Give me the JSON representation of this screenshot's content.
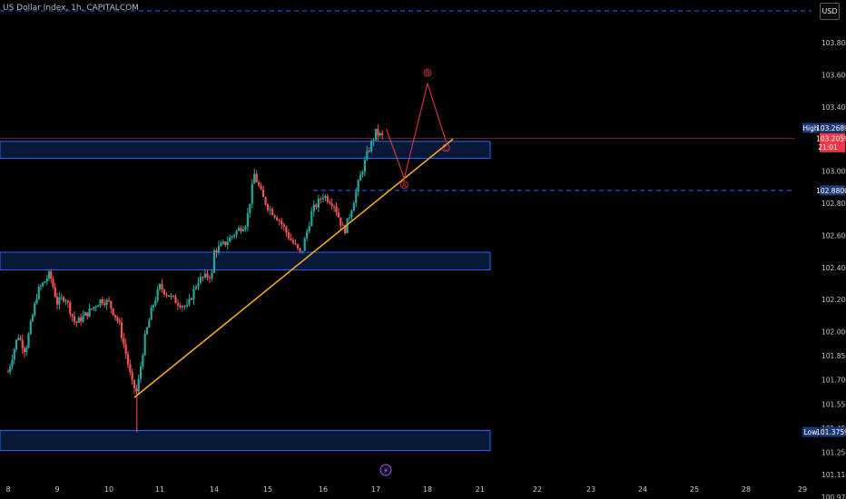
{
  "header": {
    "title": "US Dollar Index, 1h, CAPITALCOM",
    "currency_button": "USD"
  },
  "chart_data": {
    "type": "candlestick",
    "y_axis": {
      "ticks": [
        "103.8000",
        "103.6000",
        "103.4000",
        "103.2000",
        "103.0000",
        "102.8000",
        "102.6000",
        "102.4000",
        "102.2000",
        "102.0000",
        "101.8500",
        "101.7000",
        "101.5500",
        "101.4000",
        "101.2500",
        "101.1100",
        "100.9700"
      ]
    },
    "x_axis": {
      "ticks": [
        "8",
        "9",
        "10",
        "11",
        "14",
        "15",
        "16",
        "17",
        "18",
        "21",
        "22",
        "23",
        "24",
        "25",
        "28",
        "29"
      ]
    },
    "price_tags": {
      "high": {
        "label": "High",
        "value": "103.2689",
        "color": "#1c3a7a"
      },
      "current": {
        "value": "103.2059",
        "countdown": "21:01",
        "color": "#f23645"
      },
      "level": {
        "value": "102.8800",
        "color": "#1c3a7a"
      },
      "low": {
        "label": "Low",
        "value": "101.3759",
        "color": "#1c3a7a"
      }
    },
    "zones": [
      {
        "from": 103.08,
        "to": 103.185
      },
      {
        "from": 102.385,
        "to": 102.495
      },
      {
        "from": 101.26,
        "to": 101.385
      }
    ],
    "levels": [
      {
        "value": 102.88,
        "style": "dashed",
        "color": "#2962ff"
      },
      {
        "value": 103.205,
        "style": "solid",
        "color": "#7a1f2b"
      }
    ],
    "trendline": {
      "from": {
        "day": 10.5,
        "value": 101.59
      },
      "to": {
        "day": 21.0,
        "value": 103.2
      },
      "color": "#f5a623"
    },
    "wave_projection": {
      "labels": [
        "A",
        "B",
        "C"
      ],
      "points": [
        {
          "day": 17.2,
          "value": 103.265
        },
        {
          "day": 17.55,
          "value": 102.955
        },
        {
          "day": 18.0,
          "value": 103.545
        },
        {
          "day": 18.35,
          "value": 103.185
        }
      ],
      "color": "#f23645"
    },
    "colors": {
      "up": "#26a69a",
      "down": "#ef5350",
      "zone_border": "#2962ff",
      "zone_fill": "#0a1838"
    },
    "grid": false,
    "event_marker": "⚡"
  }
}
